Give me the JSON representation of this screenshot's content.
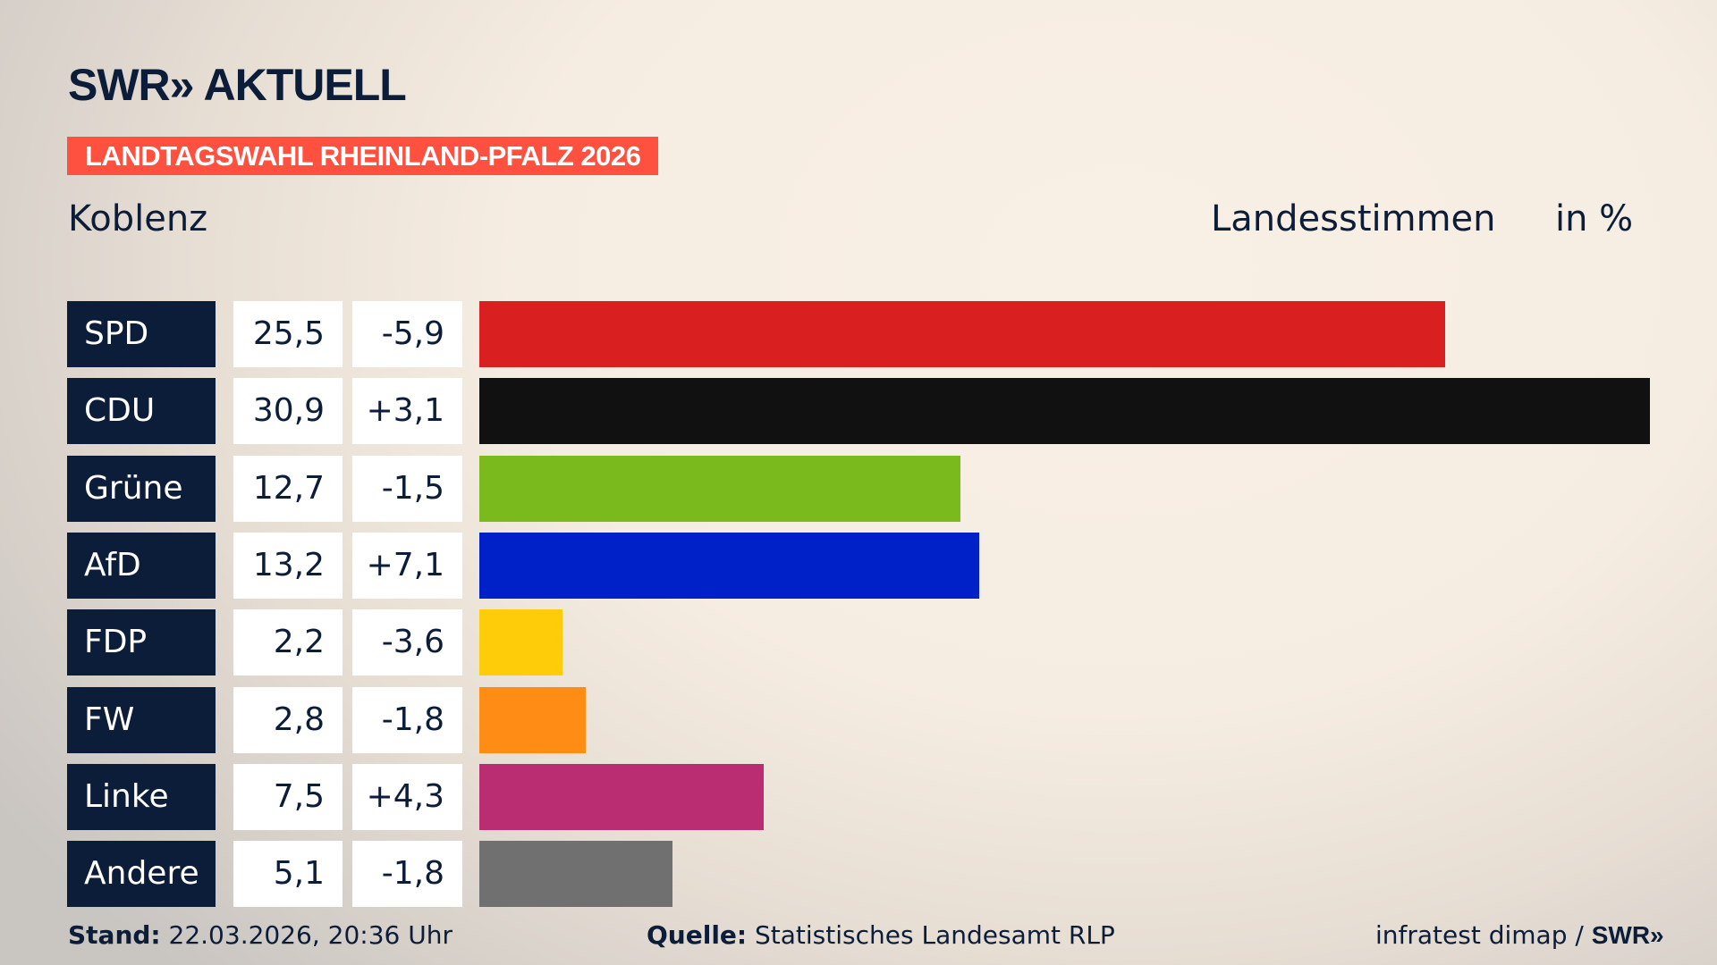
{
  "header": {
    "logo": "SWR» AKTUELL",
    "banner": "LANDTAGSWAHL RHEINLAND-PFALZ 2026",
    "region": "Koblenz",
    "subtitle": "Landesstimmen",
    "unit": "in %"
  },
  "colors": {
    "banner": "#ff5040",
    "party_label": "#0c1d3a"
  },
  "chart_data": {
    "type": "bar",
    "orientation": "horizontal",
    "xlim": [
      0,
      30.9
    ],
    "categories": [
      "SPD",
      "CDU",
      "Grüne",
      "AfD",
      "FDP",
      "FW",
      "Linke",
      "Andere"
    ],
    "values": [
      25.5,
      30.9,
      12.7,
      13.2,
      2.2,
      2.8,
      7.5,
      5.1
    ],
    "value_labels": [
      "25,5",
      "30,9",
      "12,7",
      "13,2",
      "2,2",
      "2,8",
      "7,5",
      "5,1"
    ],
    "change_labels": [
      "-5,9",
      "+3,1",
      "-1,5",
      "+7,1",
      "-3,6",
      "-1,8",
      "+4,3",
      "-1,8"
    ],
    "colors": [
      "#d91f1f",
      "#111111",
      "#7aba1c",
      "#0021c8",
      "#ffcc0a",
      "#ff8c14",
      "#bb2d73",
      "#707070"
    ]
  },
  "footer": {
    "stand_label": "Stand:",
    "stand_value": "22.03.2026, 20:36 Uhr",
    "source_label": "Quelle:",
    "source_value": "Statistisches Landesamt RLP",
    "credit": "infratest dimap / ",
    "credit_logo": "SWR»"
  }
}
